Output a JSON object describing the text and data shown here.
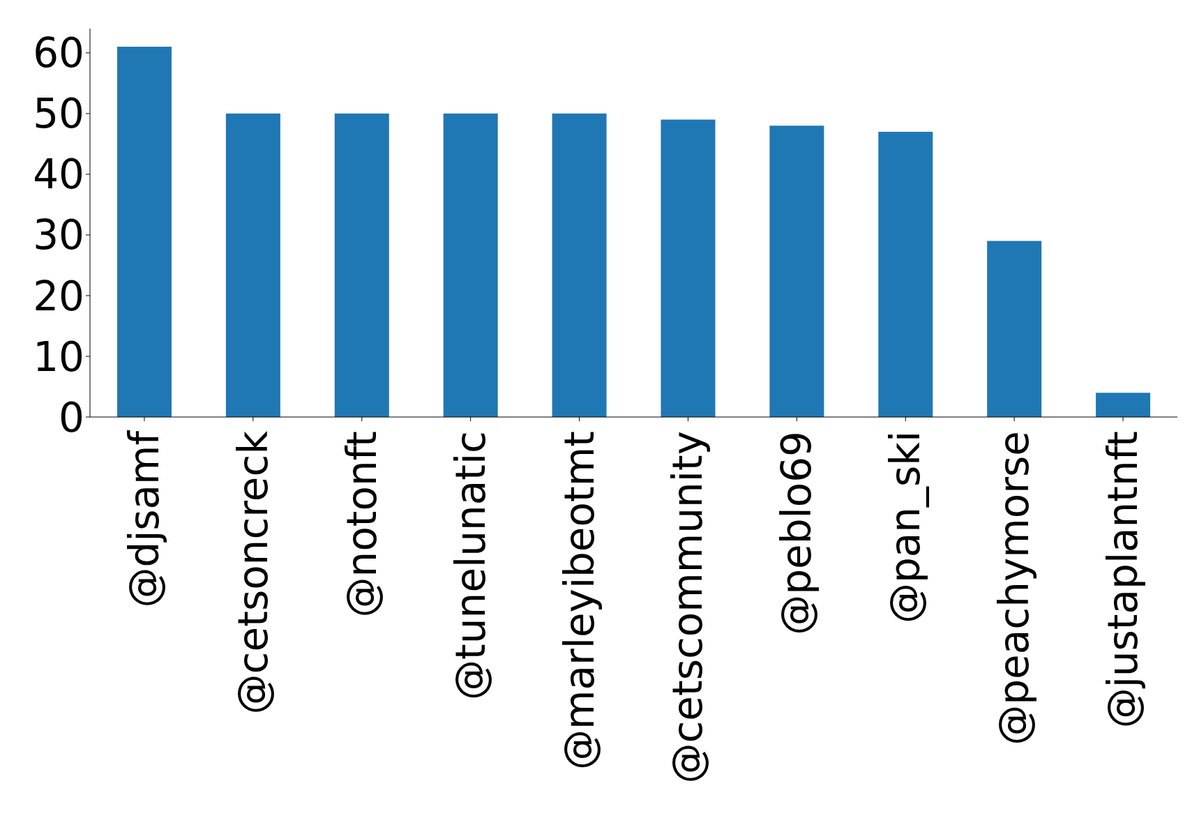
{
  "chart_data": {
    "type": "bar",
    "categories": [
      "@djsamf",
      "@cetsoncreck",
      "@notonft",
      "@tunelunatic",
      "@marleyibeotmt",
      "@cetscommunity",
      "@peblo69",
      "@pan_ski",
      "@peachymorse",
      "@justaplantnft"
    ],
    "values": [
      61,
      50,
      50,
      50,
      50,
      49,
      48,
      47,
      29,
      4
    ],
    "color": "#1f77b4",
    "ylim": [
      0,
      64
    ],
    "yticks": [
      0,
      10,
      20,
      30,
      40,
      50,
      60
    ],
    "grid": false,
    "legend": false
  }
}
